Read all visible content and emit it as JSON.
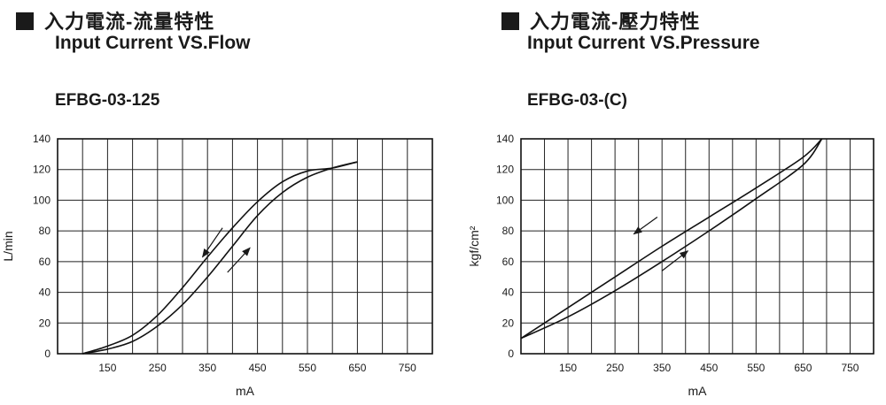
{
  "charts": [
    {
      "heading_zh": "入力電流-流量特性",
      "heading_en": "Input Current VS.Flow",
      "model": "EFBG-03-125"
    },
    {
      "heading_zh": "入力電流-壓力特性",
      "heading_en": "Input Current VS.Pressure",
      "model": "EFBG-03-(C)"
    }
  ],
  "chart_data": [
    {
      "type": "line",
      "title": "Input Current VS.Flow",
      "xlabel": "mA",
      "ylabel": "L/min",
      "xlim": [
        50,
        800
      ],
      "ylim": [
        0,
        140
      ],
      "x_ticks": [
        150,
        250,
        350,
        450,
        550,
        650,
        750
      ],
      "y_ticks": [
        0,
        20,
        40,
        60,
        80,
        100,
        120,
        140
      ],
      "grid": true,
      "series": [
        {
          "x": [
            100,
            150,
            200,
            250,
            300,
            350,
            400,
            450,
            500,
            550,
            600,
            650
          ],
          "y": [
            0,
            5,
            12,
            25,
            43,
            63,
            82,
            99,
            112,
            119,
            121,
            125
          ]
        },
        {
          "x": [
            100,
            150,
            200,
            250,
            300,
            350,
            400,
            450,
            500,
            550,
            600,
            650
          ],
          "y": [
            0,
            3,
            8,
            18,
            32,
            50,
            70,
            90,
            105,
            115,
            121,
            125
          ]
        }
      ],
      "annotations": [
        {
          "type": "arrow",
          "direction": "down",
          "from": [
            380,
            82
          ],
          "to": [
            340,
            63
          ]
        },
        {
          "type": "arrow",
          "direction": "up",
          "from": [
            390,
            53
          ],
          "to": [
            435,
            69
          ]
        }
      ]
    },
    {
      "type": "line",
      "title": "Input Current VS.Pressure",
      "xlabel": "mA",
      "ylabel": "kgf/cm²",
      "xlim": [
        50,
        800
      ],
      "ylim": [
        0,
        140
      ],
      "x_ticks": [
        150,
        250,
        350,
        450,
        550,
        650,
        750
      ],
      "y_ticks": [
        0,
        20,
        40,
        60,
        80,
        100,
        120,
        140
      ],
      "grid": true,
      "series": [
        {
          "x": [
            50,
            150,
            250,
            350,
            450,
            550,
            650,
            690
          ],
          "y": [
            10,
            30,
            50,
            70,
            89,
            108,
            128,
            140
          ]
        },
        {
          "x": [
            50,
            150,
            250,
            350,
            450,
            550,
            650,
            690
          ],
          "y": [
            10,
            24,
            41,
            60,
            80,
            101,
            123,
            140
          ]
        }
      ],
      "annotations": [
        {
          "type": "arrow",
          "direction": "down",
          "from": [
            340,
            89
          ],
          "to": [
            290,
            78
          ]
        },
        {
          "type": "arrow",
          "direction": "up",
          "from": [
            350,
            54
          ],
          "to": [
            405,
            67
          ]
        }
      ]
    }
  ]
}
